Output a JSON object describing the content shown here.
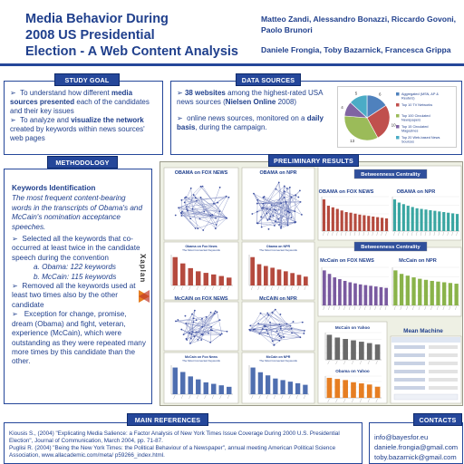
{
  "header": {
    "title_lines": [
      "Media Behavior During",
      "2008 US Presidential",
      "Election - A Web Content Analysis"
    ],
    "authors_line1": "Matteo Zandi, Alessandro Bonazzi,  Riccardo Govoni, Paolo Brunori",
    "authors_line2": "Daniele Frongia, Toby Bazarnick, Francesca Grippa"
  },
  "study_goal": {
    "label": "STUDY GOAL",
    "b1_pre": "To understand how different ",
    "b1_bold": "media sources presented",
    "b1_post": " each of the candidates and their key issues",
    "b2_pre": "To analyze and ",
    "b2_bold": "visualize the network",
    "b2_post": " created by keywords within news sources' web pages"
  },
  "data_sources": {
    "label": "DATA SOURCES",
    "b1_bold": "38 websites",
    "b1_mid": " among the highest-rated USA news sources (",
    "b1_bold2": "Nielsen Online",
    "b1_post": " 2008)",
    "b2_pre": "online news sources, monitored on a ",
    "b2_bold": "daily basis",
    "b2_post": ", during the campaign.",
    "pie_legend": [
      "Aggregated (MSN, AP & Reuters)",
      "Top 10 TV Networks",
      "Top 100 Circulated Newspapers",
      "Top 15 Circulated Magazines",
      "Top 20 Web-based News Sources"
    ],
    "pie_values": [
      6,
      10,
      13,
      4,
      5
    ],
    "pie_colors": [
      "#4f81bd",
      "#c0504d",
      "#9bbb59",
      "#8064a2",
      "#4bacc6"
    ]
  },
  "methodology": {
    "label": "METHODOLOGY",
    "heading": "Keywords Identification",
    "intro": "The most frequent content-bearing words in the transcripts of Obama's and McCain's nomination acceptance speeches.",
    "b1": "Selected all the keywords that co-occurred at least twice in the candidate speech during the convention",
    "obama": "a. Obama: 122 keywords",
    "mccain": "b. McCain: 115 keywords",
    "b2": "Removed all the keywords used at least two times also by the other candidate",
    "b3": "Exception for change, promise, dream (Obama)  and fight, veteran, experience (McCain), which were outstanding as they were repeated many more times by this candidate than the other.",
    "logo_text": "Xaplan"
  },
  "prelim": {
    "label": "PRELIMINARY RESULTS",
    "net_titles": [
      "OBAMA on FOX NEWS",
      "OBAMA on NPR",
      "McCAIN on FOX NEWS",
      "McCAIN on NPR"
    ],
    "chart_titles": [
      "Obama on Fox News",
      "Obama on NPR",
      "McCain on Fox News",
      "McCain on NPR"
    ],
    "chart_subtitle": "The Most Connected Keywords",
    "betweenness": "Betweenness Centrality",
    "bc_titles": [
      "OBAMA on FOX NEWS",
      "OBAMA on NPR",
      "McCain on FOX NEWS",
      "McCain on NPR"
    ],
    "yahoo_titles": [
      "McCain on Yahoo",
      "Obama on Yahoo"
    ],
    "mean_machine": "Mean Machine",
    "color_fox": "#b54a3e",
    "color_npr": "#3aa6a2",
    "color_mccain_fox": "#7a5aa0",
    "color_mccain_npr": "#8ab34a",
    "color_yahoo_mccain": "#6a6a6a",
    "color_yahoo_obama": "#e67e22"
  },
  "chart_data": [
    {
      "type": "bar",
      "title": "Obama on Fox News",
      "values": [
        9,
        7,
        5.5,
        4.5,
        4,
        3.5,
        3,
        2.5
      ]
    },
    {
      "type": "bar",
      "title": "Obama on NPR",
      "values": [
        8,
        6,
        5.5,
        5,
        4.5,
        4,
        3.5,
        3,
        2.5
      ]
    },
    {
      "type": "bar",
      "title": "McCain on Fox News",
      "values": [
        9,
        7.5,
        6,
        5,
        4,
        3.5,
        3,
        2.5
      ]
    },
    {
      "type": "bar",
      "title": "McCain on NPR",
      "values": [
        8.5,
        7,
        6,
        5,
        4.5,
        4,
        3.5,
        3
      ]
    },
    {
      "type": "bar",
      "title": "OBAMA on FOX NEWS",
      "values": [
        10,
        8,
        7.5,
        7,
        6.5,
        6,
        5.8,
        5.5,
        5.2,
        5,
        4.8,
        4.6,
        4.4,
        4.2,
        4
      ]
    },
    {
      "type": "bar",
      "title": "OBAMA on NPR",
      "values": [
        10,
        9,
        8.5,
        8,
        7.6,
        7.2,
        7,
        6.8,
        6.6,
        6.4,
        6.2,
        6,
        5.8,
        5.6,
        5.4
      ]
    },
    {
      "type": "bar",
      "title": "McCain on FOX NEWS",
      "values": [
        10,
        9,
        8,
        7.5,
        7,
        6.6,
        6.3,
        6,
        5.8,
        5.6,
        5.4,
        5.2,
        5
      ]
    },
    {
      "type": "bar",
      "title": "McCain on NPR",
      "values": [
        10,
        9,
        8.5,
        8,
        7.6,
        7.3,
        7,
        6.8,
        6.6,
        6.4,
        6.2
      ]
    },
    {
      "type": "bar",
      "title": "McCain on Yahoo",
      "values": [
        9,
        8,
        7.5,
        7,
        6.5,
        6,
        5.5
      ]
    },
    {
      "type": "bar",
      "title": "Obama on Yahoo",
      "values": [
        9,
        8.5,
        8,
        7,
        6.5,
        6,
        5
      ]
    }
  ],
  "references": {
    "label": "MAIN REFERENCES",
    "ref1": "Kiousis S., (2004) \"Explicating Media Salience: a Factor Analysis of New York Times Issue Coverage During 2000 U.S. Presidential Election\", Journal of Communication, March 2004, pp. 71-87.",
    "ref2": "Puglisi R. (2004) \"Being the New York Times: the Political Behaviour of a Newspaper\", annual meeting American Political Science Association, www.allacademic.com/meta/ p59266_index.html."
  },
  "contacts": {
    "label": "CONTACTS",
    "emails": [
      "info@bayesfor.eu",
      "daniele.frongia@gmail.com",
      "toby.bazarnick@gmail.com"
    ]
  }
}
